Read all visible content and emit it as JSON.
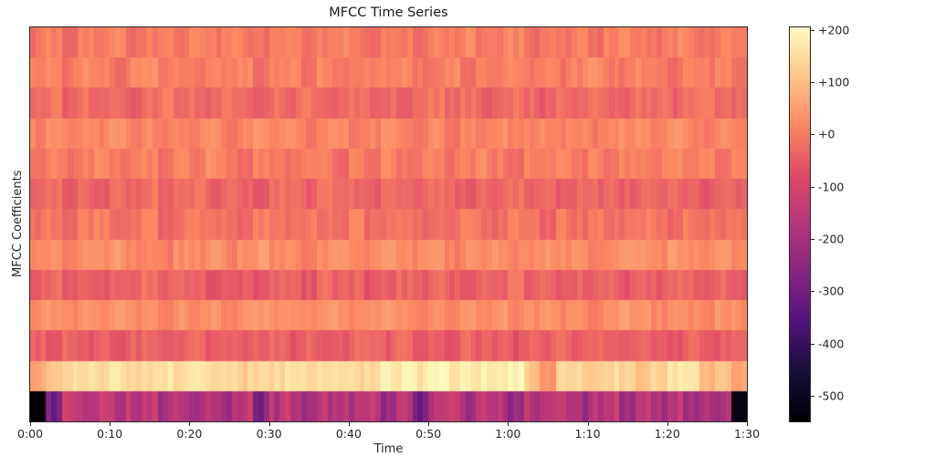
{
  "title": "MFCC Time Series",
  "xlabel": "Time",
  "ylabel": "MFCC Coefficients",
  "colors": {
    "background": "#ffffff",
    "axis": "#262626",
    "text": "#1a1a1a"
  },
  "chart_data": {
    "type": "heatmap",
    "title": "MFCC Time Series",
    "xlabel": "Time",
    "ylabel": "MFCC Coefficients",
    "colormap": "magma",
    "vmin": -549,
    "vmax": 205,
    "x_ticks": [
      "0:00",
      "0:10",
      "0:20",
      "0:30",
      "0:40",
      "0:50",
      "1:00",
      "1:10",
      "1:20",
      "1:30"
    ],
    "x_range_seconds": [
      0,
      90
    ],
    "n_rows": 13,
    "time_bin_seconds": 2,
    "colorbar_tick_labels": [
      "+200",
      "+100",
      "+0",
      "-100",
      "-200",
      "-300",
      "-400",
      "-500"
    ],
    "colorbar_tick_values": [
      200,
      100,
      0,
      -100,
      -200,
      -300,
      -400,
      -500
    ],
    "legend_position": "right-colorbar",
    "grid": false,
    "matrix": [
      [
        -10,
        5,
        -20,
        10,
        -5,
        15,
        -25,
        0,
        10,
        -15,
        5,
        -10,
        20,
        -5,
        -20,
        10,
        0,
        -15,
        5,
        15,
        -10,
        -25,
        5,
        0,
        -15,
        10,
        -5,
        20,
        -10,
        0,
        15,
        -20,
        5,
        -10,
        10,
        -25,
        0,
        15,
        -5,
        -15,
        10,
        0,
        -20,
        5,
        -5
      ],
      [
        0,
        15,
        -10,
        20,
        5,
        -15,
        10,
        25,
        -5,
        10,
        -10,
        15,
        0,
        20,
        -15,
        5,
        10,
        -10,
        25,
        0,
        15,
        -5,
        10,
        20,
        -10,
        5,
        15,
        -15,
        10,
        0,
        20,
        -5,
        15,
        -10,
        5,
        25,
        0,
        -10,
        15,
        5,
        -15,
        20,
        0,
        10,
        -5
      ],
      [
        -30,
        -10,
        -40,
        -20,
        -35,
        -15,
        -45,
        -25,
        -10,
        -35,
        -20,
        -40,
        -15,
        -30,
        -45,
        -20,
        -35,
        -10,
        -25,
        -40,
        -15,
        -30,
        -20,
        -45,
        -25,
        -10,
        -35,
        -20,
        -40,
        -30,
        -15,
        -25,
        -45,
        -20,
        -35,
        -10,
        -30,
        -40,
        -15,
        -25,
        -35,
        -20,
        -10,
        -30,
        -25
      ],
      [
        5,
        20,
        0,
        25,
        10,
        30,
        5,
        15,
        -5,
        20,
        10,
        25,
        0,
        15,
        30,
        5,
        20,
        -5,
        15,
        25,
        0,
        10,
        30,
        15,
        5,
        25,
        -5,
        20,
        10,
        30,
        0,
        15,
        25,
        5,
        20,
        -5,
        10,
        30,
        15,
        0,
        25,
        10,
        5,
        20,
        15
      ],
      [
        -5,
        10,
        -15,
        5,
        20,
        -10,
        0,
        15,
        -20,
        10,
        -5,
        20,
        5,
        -15,
        10,
        0,
        -10,
        20,
        5,
        -20,
        15,
        -5,
        10,
        -15,
        0,
        20,
        -10,
        5,
        15,
        -5,
        -20,
        10,
        0,
        20,
        -15,
        5,
        -10,
        15,
        0,
        -5,
        20,
        -15,
        10,
        -5,
        5
      ],
      [
        -35,
        -15,
        -45,
        -25,
        -50,
        -20,
        -35,
        -10,
        -40,
        -30,
        -15,
        -45,
        -25,
        -35,
        -50,
        -20,
        -30,
        -45,
        -15,
        -35,
        -25,
        -50,
        -30,
        -20,
        -40,
        -15,
        -35,
        -45,
        -25,
        -30,
        -10,
        -40,
        -20,
        -50,
        -30,
        -35,
        -15,
        -45,
        -25,
        -40,
        -20,
        -30,
        -50,
        -25,
        -35
      ],
      [
        -15,
        0,
        -25,
        -5,
        10,
        -20,
        -10,
        5,
        -30,
        -15,
        0,
        -20,
        -5,
        -25,
        10,
        -15,
        -30,
        0,
        -10,
        -20,
        5,
        -25,
        -15,
        0,
        -30,
        -10,
        -20,
        5,
        -15,
        -25,
        0,
        -10,
        -30,
        -5,
        -20,
        10,
        -15,
        -25,
        0,
        -10,
        -30,
        -5,
        -15,
        -20,
        -10
      ],
      [
        15,
        30,
        10,
        35,
        20,
        40,
        15,
        25,
        5,
        30,
        20,
        35,
        10,
        25,
        45,
        15,
        30,
        5,
        25,
        40,
        10,
        20,
        45,
        25,
        15,
        35,
        5,
        30,
        20,
        40,
        10,
        25,
        35,
        15,
        30,
        5,
        20,
        40,
        25,
        10,
        35,
        20,
        15,
        30,
        25
      ],
      [
        -45,
        -25,
        -55,
        -35,
        -60,
        -30,
        -45,
        -20,
        -50,
        -40,
        -25,
        -55,
        -35,
        -45,
        -60,
        -30,
        -40,
        -55,
        -25,
        -45,
        -35,
        -60,
        -40,
        -30,
        -50,
        -25,
        -45,
        -55,
        -35,
        -40,
        -20,
        -50,
        -30,
        -60,
        -40,
        -45,
        -25,
        -55,
        -35,
        -50,
        -30,
        -40,
        -60,
        -35,
        -45
      ],
      [
        20,
        35,
        15,
        40,
        25,
        45,
        20,
        30,
        10,
        35,
        25,
        40,
        15,
        30,
        50,
        20,
        35,
        10,
        30,
        45,
        15,
        25,
        50,
        30,
        20,
        40,
        10,
        35,
        25,
        45,
        15,
        30,
        40,
        20,
        35,
        10,
        25,
        45,
        30,
        15,
        40,
        25,
        20,
        35,
        30
      ],
      [
        -40,
        -55,
        -30,
        -50,
        -35,
        -60,
        -40,
        -25,
        -55,
        -45,
        -30,
        -60,
        -35,
        -50,
        -40,
        -25,
        -55,
        -35,
        -45,
        -60,
        -30,
        -40,
        -50,
        -25,
        -45,
        -35,
        -55,
        -30,
        -50,
        -40,
        -60,
        -35,
        -45,
        -25,
        -50,
        -40,
        -30,
        -55,
        -35,
        -45,
        -60,
        -30,
        -40,
        -50,
        -35
      ],
      [
        60,
        125,
        145,
        155,
        140,
        160,
        135,
        150,
        165,
        145,
        155,
        140,
        160,
        130,
        150,
        145,
        165,
        150,
        140,
        160,
        145,
        155,
        170,
        180,
        165,
        190,
        175,
        185,
        170,
        160,
        185,
        120,
        45,
        130,
        140,
        125,
        145,
        135,
        120,
        140,
        160,
        150,
        95,
        120,
        60
      ],
      [
        -550,
        -300,
        -150,
        -170,
        -140,
        -180,
        -150,
        -160,
        -200,
        -145,
        -175,
        -140,
        -210,
        -155,
        -280,
        -165,
        -145,
        -195,
        -175,
        -140,
        -185,
        -155,
        -230,
        -145,
        -290,
        -175,
        -155,
        -200,
        -140,
        -185,
        -250,
        -160,
        -150,
        -145,
        -215,
        -175,
        -140,
        -200,
        -155,
        -185,
        -145,
        -240,
        -170,
        -170,
        -520
      ]
    ]
  }
}
